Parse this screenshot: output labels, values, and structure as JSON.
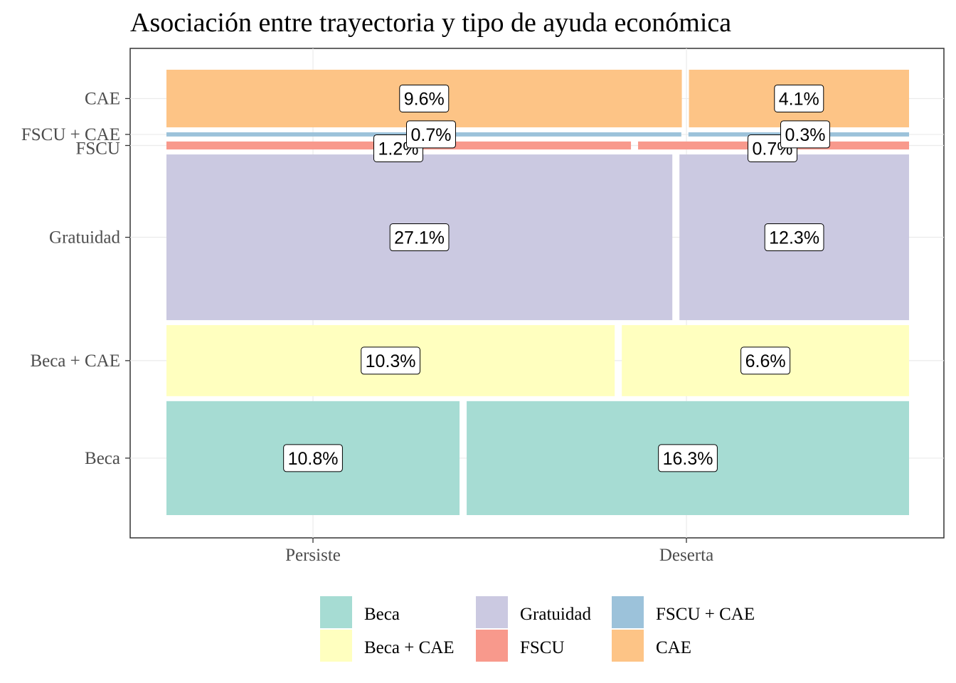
{
  "chart_data": {
    "type": "mosaic",
    "title": "Asociación entre trayectoria y tipo de ayuda económica",
    "xlabel": "",
    "ylabel": "",
    "grid": true,
    "legend_position": "bottom",
    "x_categories": [
      "Persiste",
      "Deserta"
    ],
    "y_categories": [
      "Beca",
      "Beca + CAE",
      "Gratuidad",
      "FSCU",
      "FSCU + CAE",
      "CAE"
    ],
    "series": [
      {
        "name": "Beca",
        "color": "#a6dcd3",
        "values": {
          "Persiste": 10.8,
          "Deserta": 16.3
        },
        "labels": [
          "10.8%",
          "16.3%"
        ]
      },
      {
        "name": "Beca + CAE",
        "color": "#ffffbf",
        "values": {
          "Persiste": 10.3,
          "Deserta": 6.6
        },
        "labels": [
          "10.3%",
          "6.6%"
        ]
      },
      {
        "name": "Gratuidad",
        "color": "#cbc9e1",
        "values": {
          "Persiste": 27.1,
          "Deserta": 12.3
        },
        "labels": [
          "27.1%",
          "12.3%"
        ]
      },
      {
        "name": "FSCU",
        "color": "#f8998c",
        "values": {
          "Persiste": 1.2,
          "Deserta": 0.7
        },
        "labels": [
          "1.2%",
          "0.7%"
        ]
      },
      {
        "name": "FSCU + CAE",
        "color": "#9cc2da",
        "values": {
          "Persiste": 0.7,
          "Deserta": 0.3
        },
        "labels": [
          "0.7%",
          "0.3%"
        ]
      },
      {
        "name": "CAE",
        "color": "#fdc486",
        "values": {
          "Persiste": 9.6,
          "Deserta": 4.1
        },
        "labels": [
          "9.6%",
          "4.1%"
        ]
      }
    ],
    "legend": [
      "Beca",
      "Gratuidad",
      "FSCU + CAE",
      "Beca + CAE",
      "FSCU",
      "CAE"
    ]
  }
}
